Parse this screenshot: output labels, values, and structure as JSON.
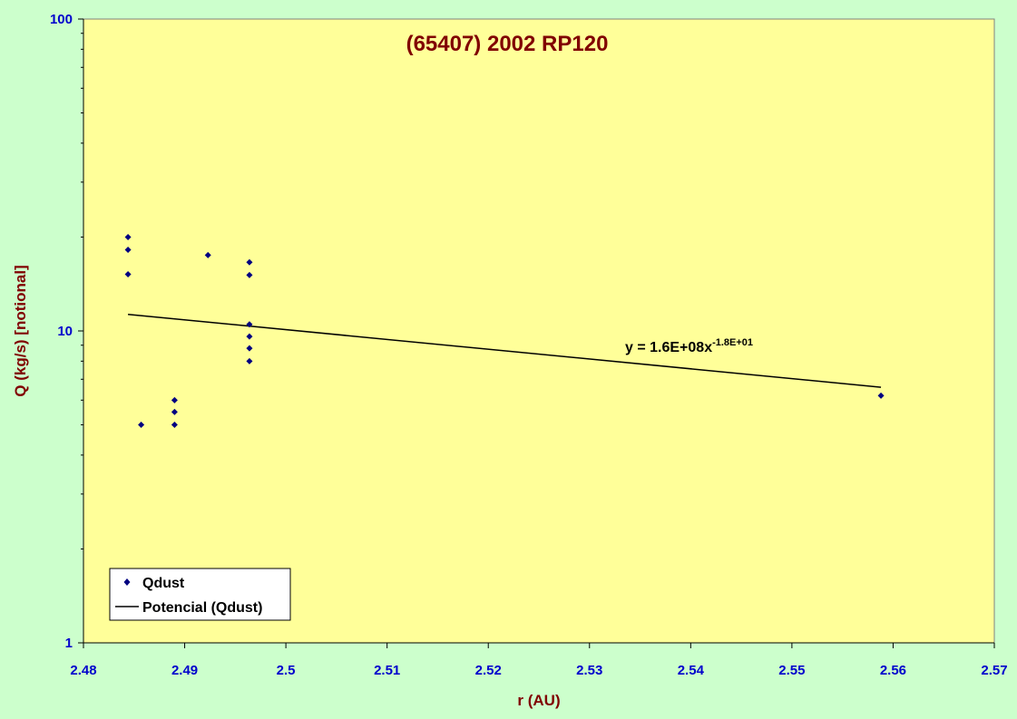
{
  "chart_data": {
    "type": "scatter",
    "title": "(65407) 2002 RP120",
    "xlabel": "r (AU)",
    "ylabel": "Q (kg/s) [notional]",
    "xlim": [
      2.48,
      2.57
    ],
    "ylim": [
      1,
      100
    ],
    "yscale": "log",
    "grid": false,
    "x_ticks": [
      "2.48",
      "2.49",
      "2.5",
      "2.51",
      "2.52",
      "2.53",
      "2.54",
      "2.55",
      "2.56",
      "2.57"
    ],
    "y_ticks": [
      "1",
      "10",
      "100"
    ],
    "series": [
      {
        "name": "Qdust",
        "marker": "diamond",
        "color": "#000080",
        "points": [
          {
            "x": 2.4844,
            "y": 20.0
          },
          {
            "x": 2.4844,
            "y": 18.2
          },
          {
            "x": 2.4844,
            "y": 15.2
          },
          {
            "x": 2.4857,
            "y": 5.0
          },
          {
            "x": 2.489,
            "y": 6.0
          },
          {
            "x": 2.489,
            "y": 5.5
          },
          {
            "x": 2.489,
            "y": 5.0
          },
          {
            "x": 2.4923,
            "y": 17.5
          },
          {
            "x": 2.4964,
            "y": 16.6
          },
          {
            "x": 2.4964,
            "y": 15.1
          },
          {
            "x": 2.4964,
            "y": 10.5
          },
          {
            "x": 2.4964,
            "y": 9.6
          },
          {
            "x": 2.4964,
            "y": 8.8
          },
          {
            "x": 2.4964,
            "y": 8.0
          },
          {
            "x": 2.5588,
            "y": 6.2
          }
        ]
      },
      {
        "name": "Potencial (Qdust)",
        "type": "trendline",
        "color": "#000000",
        "points": [
          {
            "x": 2.4844,
            "y": 11.3
          },
          {
            "x": 2.5588,
            "y": 6.6
          }
        ]
      }
    ],
    "equation": {
      "base": "y = 1.6E+08x",
      "exponent": "-1.8E+01"
    },
    "legend_position": "bottom-left",
    "colors": {
      "plot_bg": "#ffff99",
      "page_bg": "#ccffcc",
      "tick": "#0000cc",
      "title": "#800000",
      "marker": "#000080"
    }
  }
}
